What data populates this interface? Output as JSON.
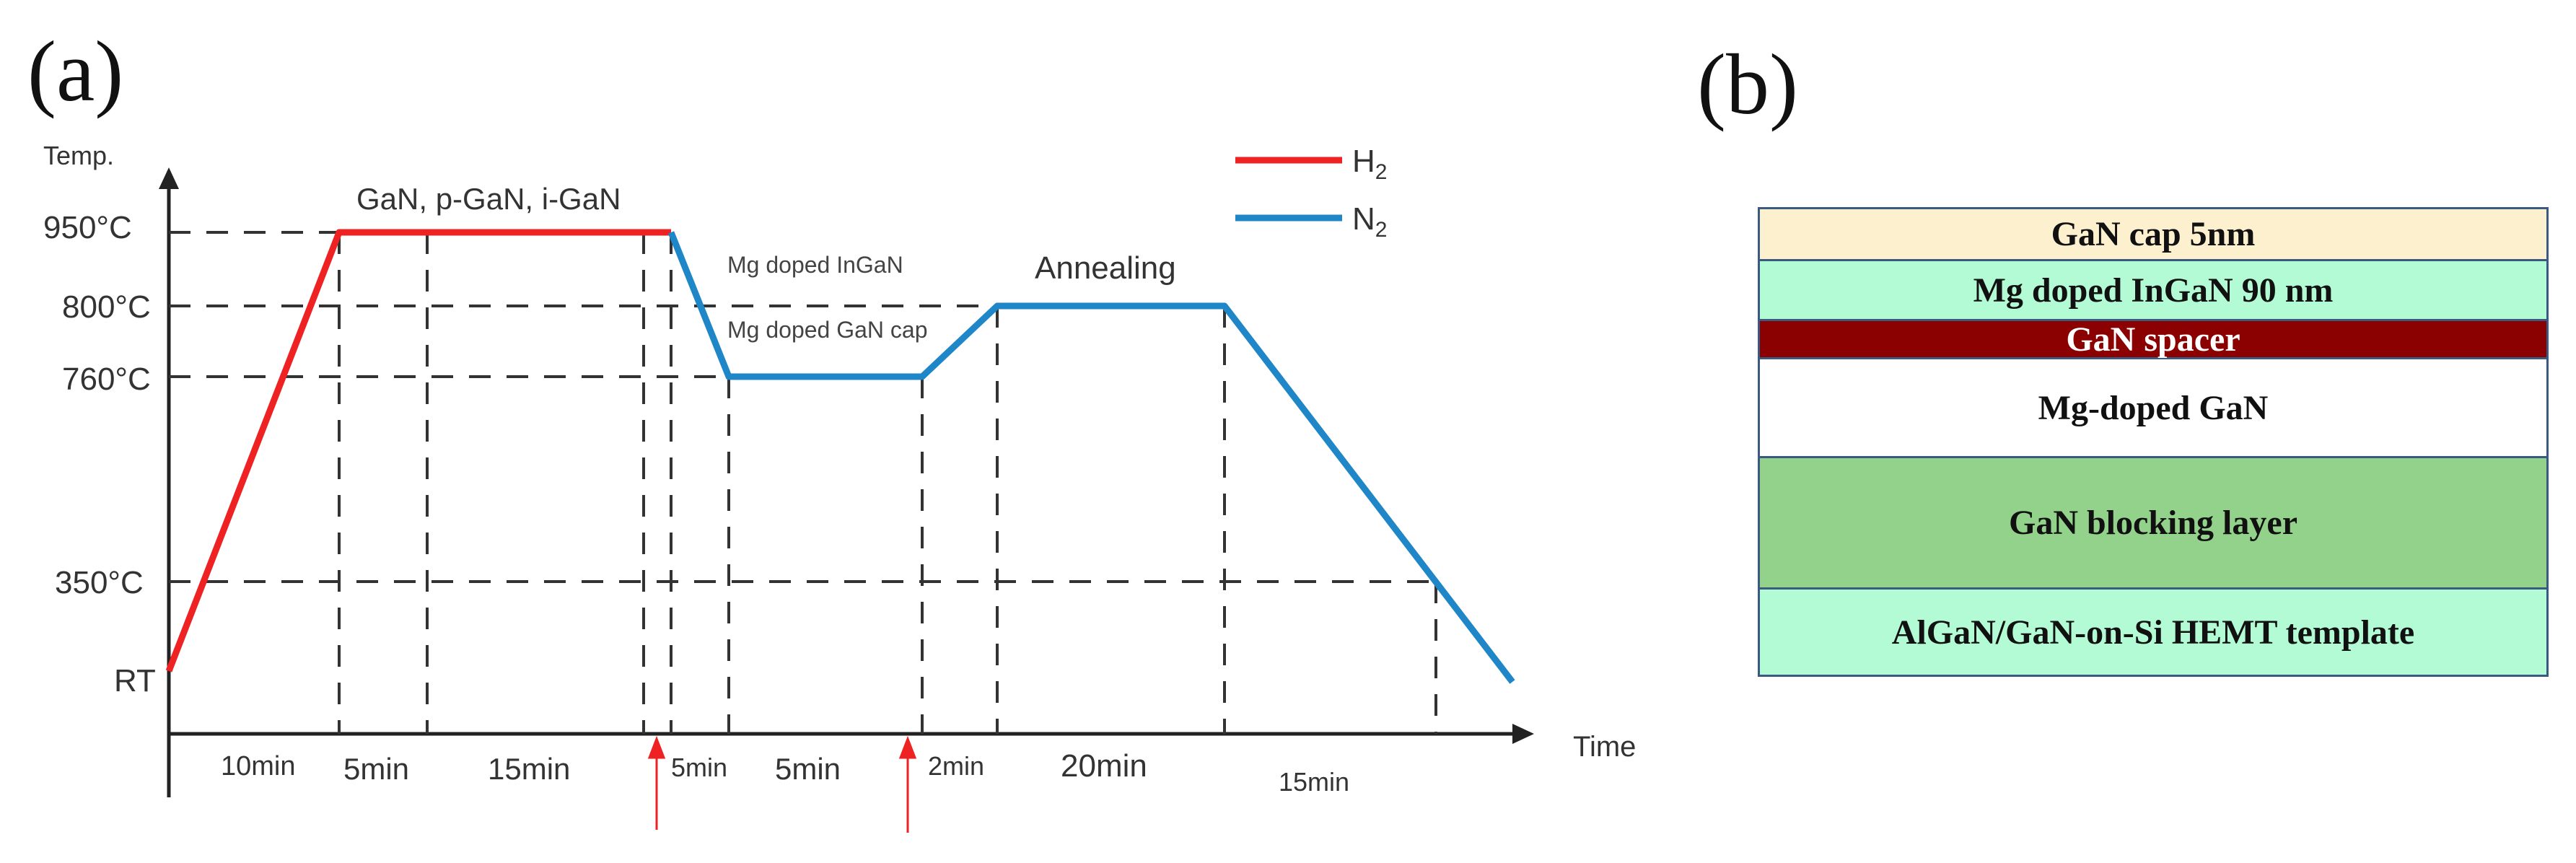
{
  "panels": {
    "a": {
      "label": "(a)",
      "y_axis_label": "Temp.",
      "x_axis_label": "Time",
      "temps": [
        "950°C",
        "800°C",
        "760°C",
        "350°C",
        "RT"
      ],
      "durations": [
        "10min",
        "5min",
        "15min",
        "5min",
        "5min",
        "2min",
        "20min",
        "15min"
      ],
      "annotations": {
        "growth": "GaN, p-GaN, i-GaN",
        "ingan": "Mg doped InGaN",
        "gan_cap": "Mg doped GaN cap",
        "annealing": "Annealing"
      },
      "legend": [
        {
          "name": "H",
          "sub": "2",
          "color": "#ee2222"
        },
        {
          "name": "N",
          "sub": "2",
          "color": "#1f86c8"
        }
      ],
      "profile": {
        "h2_segment": "RT → 950°C ramp (10min), hold 950°C (5min + 15min)",
        "n2_segment": "950°C → 760°C, hold 760°C, ramp to 800°C (2min), hold 800°C anneal (20min), cool to RT (15min)"
      },
      "colors": {
        "h2": "#ee2222",
        "n2": "#1f86c8",
        "arrow": "#ee2222"
      }
    },
    "b": {
      "label": "(b)",
      "layers": [
        {
          "text": "GaN cap 5nm",
          "color": "#fdf0cf",
          "text_color": "#111111"
        },
        {
          "text": "Mg doped InGaN 90 nm",
          "color": "#b3fbd4",
          "text_color": "#111111"
        },
        {
          "text": "GaN spacer",
          "color": "#8b0000",
          "text_color": "#ffffff"
        },
        {
          "text": "Mg-doped GaN",
          "color": "#ffffff",
          "text_color": "#111111"
        },
        {
          "text": "GaN blocking layer",
          "color": "#93d28a",
          "text_color": "#111111"
        },
        {
          "text": "AlGaN/GaN-on-Si HEMT template",
          "color": "#b3fbd4",
          "text_color": "#111111"
        }
      ]
    }
  }
}
